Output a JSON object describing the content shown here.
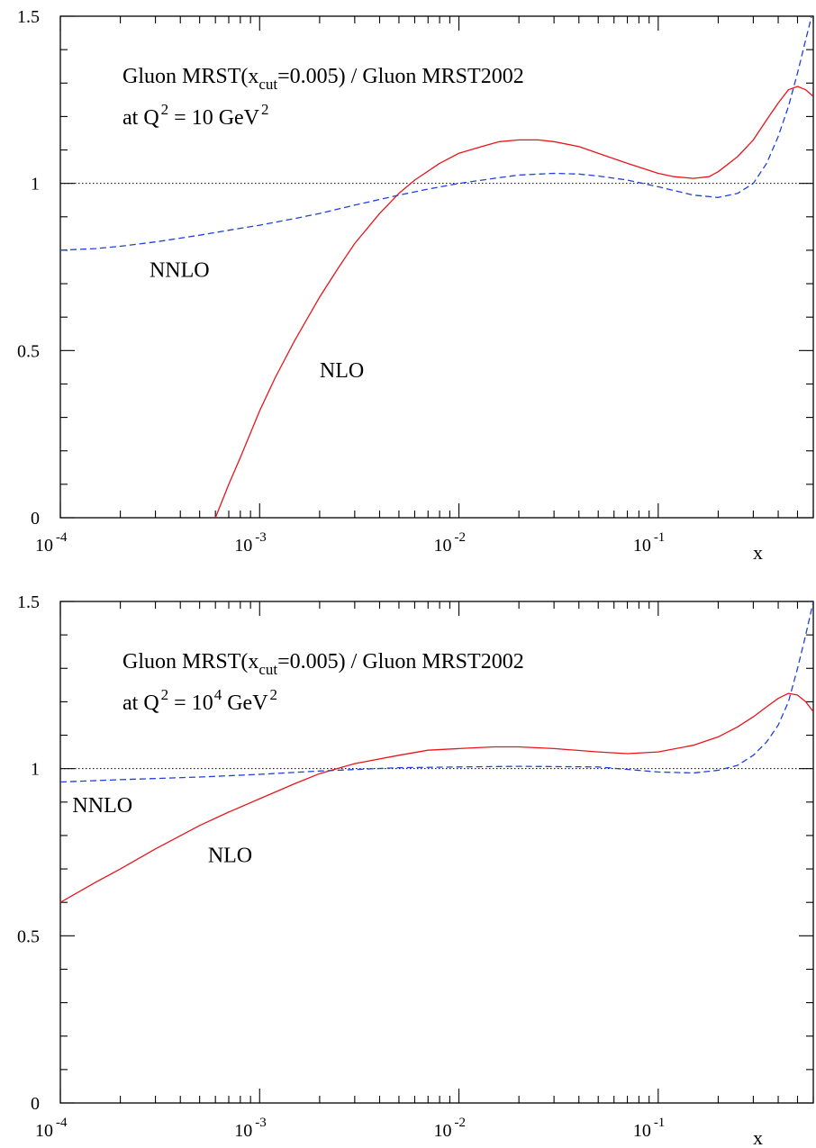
{
  "chart_data": [
    {
      "type": "line",
      "panel": "top",
      "title": "Gluon MRST(x_cut=0.005) / Gluon MRST2002",
      "title_parts": {
        "pre": "Gluon MRST(x",
        "sub": "cut",
        "post": "=0.005) / Gluon MRST2002"
      },
      "subtitle_parts": {
        "pre": "at Q",
        "sup1": "2",
        "mid": " = 10 GeV",
        "sup2": "2"
      },
      "xlabel": "x",
      "ylabel": "",
      "x_scale": "log",
      "xlim": [
        0.0001,
        0.6
      ],
      "ylim": [
        0,
        1.5
      ],
      "x_tick_labels": [
        {
          "base": "10",
          "exp": "-4",
          "value": 0.0001
        },
        {
          "base": "10",
          "exp": "-3",
          "value": 0.001
        },
        {
          "base": "10",
          "exp": "-2",
          "value": 0.01
        },
        {
          "base": "10",
          "exp": "-1",
          "value": 0.1
        }
      ],
      "y_ticks": [
        0,
        0.5,
        1,
        1.5
      ],
      "y_tick_labels": [
        "0",
        "0.5",
        "1",
        "1.5"
      ],
      "reference_line": 1,
      "series": [
        {
          "name": "NLO",
          "color": "#e8151b",
          "style": "solid",
          "x": [
            0.0006,
            0.0007,
            0.0008,
            0.001,
            0.0012,
            0.0015,
            0.002,
            0.0025,
            0.003,
            0.004,
            0.005,
            0.006,
            0.008,
            0.01,
            0.013,
            0.016,
            0.02,
            0.025,
            0.03,
            0.04,
            0.05,
            0.07,
            0.1,
            0.12,
            0.15,
            0.18,
            0.2,
            0.25,
            0.3,
            0.35,
            0.4,
            0.45,
            0.5,
            0.55,
            0.6
          ],
          "y": [
            0.0,
            0.1,
            0.18,
            0.32,
            0.42,
            0.53,
            0.66,
            0.75,
            0.82,
            0.91,
            0.97,
            1.01,
            1.06,
            1.09,
            1.11,
            1.125,
            1.13,
            1.13,
            1.125,
            1.11,
            1.09,
            1.06,
            1.03,
            1.02,
            1.015,
            1.02,
            1.035,
            1.08,
            1.13,
            1.19,
            1.24,
            1.28,
            1.29,
            1.28,
            1.26
          ]
        },
        {
          "name": "NNLO",
          "color": "#1f3fe0",
          "style": "dashed",
          "x": [
            0.0001,
            0.00015,
            0.0002,
            0.0003,
            0.0005,
            0.0007,
            0.001,
            0.0015,
            0.002,
            0.003,
            0.005,
            0.007,
            0.01,
            0.015,
            0.02,
            0.03,
            0.04,
            0.05,
            0.07,
            0.1,
            0.15,
            0.2,
            0.25,
            0.3,
            0.35,
            0.4,
            0.45,
            0.5,
            0.55,
            0.6
          ],
          "y": [
            0.8,
            0.805,
            0.812,
            0.825,
            0.845,
            0.86,
            0.875,
            0.895,
            0.91,
            0.935,
            0.965,
            0.983,
            1.0,
            1.015,
            1.025,
            1.03,
            1.028,
            1.022,
            1.01,
            0.99,
            0.965,
            0.958,
            0.97,
            1.0,
            1.06,
            1.14,
            1.23,
            1.33,
            1.43,
            1.52
          ]
        }
      ],
      "annotations": [
        {
          "text": "NNLO",
          "x": 0.00028,
          "y": 0.72
        },
        {
          "text": "NLO",
          "x": 0.002,
          "y": 0.42
        }
      ]
    },
    {
      "type": "line",
      "panel": "bottom",
      "title": "Gluon MRST(x_cut=0.005) / Gluon MRST2002",
      "title_parts": {
        "pre": "Gluon MRST(x",
        "sub": "cut",
        "post": "=0.005) / Gluon MRST2002"
      },
      "subtitle_parts": {
        "pre": "at Q",
        "sup1": "2",
        "mid": " = 10",
        "sup_mid": "4",
        "mid2": " GeV",
        "sup2": "2"
      },
      "xlabel": "x",
      "ylabel": "",
      "x_scale": "log",
      "xlim": [
        0.0001,
        0.6
      ],
      "ylim": [
        0,
        1.5
      ],
      "x_tick_labels": [
        {
          "base": "10",
          "exp": "-4",
          "value": 0.0001
        },
        {
          "base": "10",
          "exp": "-3",
          "value": 0.001
        },
        {
          "base": "10",
          "exp": "-2",
          "value": 0.01
        },
        {
          "base": "10",
          "exp": "-1",
          "value": 0.1
        }
      ],
      "y_ticks": [
        0,
        0.5,
        1,
        1.5
      ],
      "y_tick_labels": [
        "0",
        "0.5",
        "1",
        "1.5"
      ],
      "reference_line": 1,
      "series": [
        {
          "name": "NLO",
          "color": "#e8151b",
          "style": "solid",
          "x": [
            0.0001,
            0.00015,
            0.0002,
            0.0003,
            0.0005,
            0.0007,
            0.001,
            0.0015,
            0.002,
            0.003,
            0.005,
            0.007,
            0.01,
            0.015,
            0.02,
            0.03,
            0.05,
            0.07,
            0.1,
            0.15,
            0.2,
            0.25,
            0.3,
            0.35,
            0.4,
            0.45,
            0.5,
            0.55,
            0.6
          ],
          "y": [
            0.6,
            0.66,
            0.7,
            0.76,
            0.83,
            0.87,
            0.91,
            0.955,
            0.985,
            1.015,
            1.04,
            1.055,
            1.06,
            1.065,
            1.065,
            1.06,
            1.05,
            1.045,
            1.05,
            1.07,
            1.095,
            1.125,
            1.155,
            1.185,
            1.21,
            1.225,
            1.22,
            1.2,
            1.17
          ]
        },
        {
          "name": "NNLO",
          "color": "#1f3fe0",
          "style": "dashed",
          "x": [
            0.0001,
            0.0002,
            0.0005,
            0.001,
            0.002,
            0.005,
            0.01,
            0.02,
            0.05,
            0.1,
            0.15,
            0.2,
            0.25,
            0.3,
            0.35,
            0.4,
            0.45,
            0.5,
            0.55,
            0.6
          ],
          "y": [
            0.96,
            0.967,
            0.975,
            0.983,
            0.993,
            1.003,
            1.005,
            1.007,
            1.005,
            0.99,
            0.987,
            0.995,
            1.01,
            1.04,
            1.08,
            1.13,
            1.2,
            1.3,
            1.4,
            1.5
          ]
        }
      ],
      "annotations": [
        {
          "text": "NNLO",
          "x": 0.000115,
          "y": 0.87
        },
        {
          "text": "NLO",
          "x": 0.00055,
          "y": 0.72
        }
      ]
    }
  ]
}
